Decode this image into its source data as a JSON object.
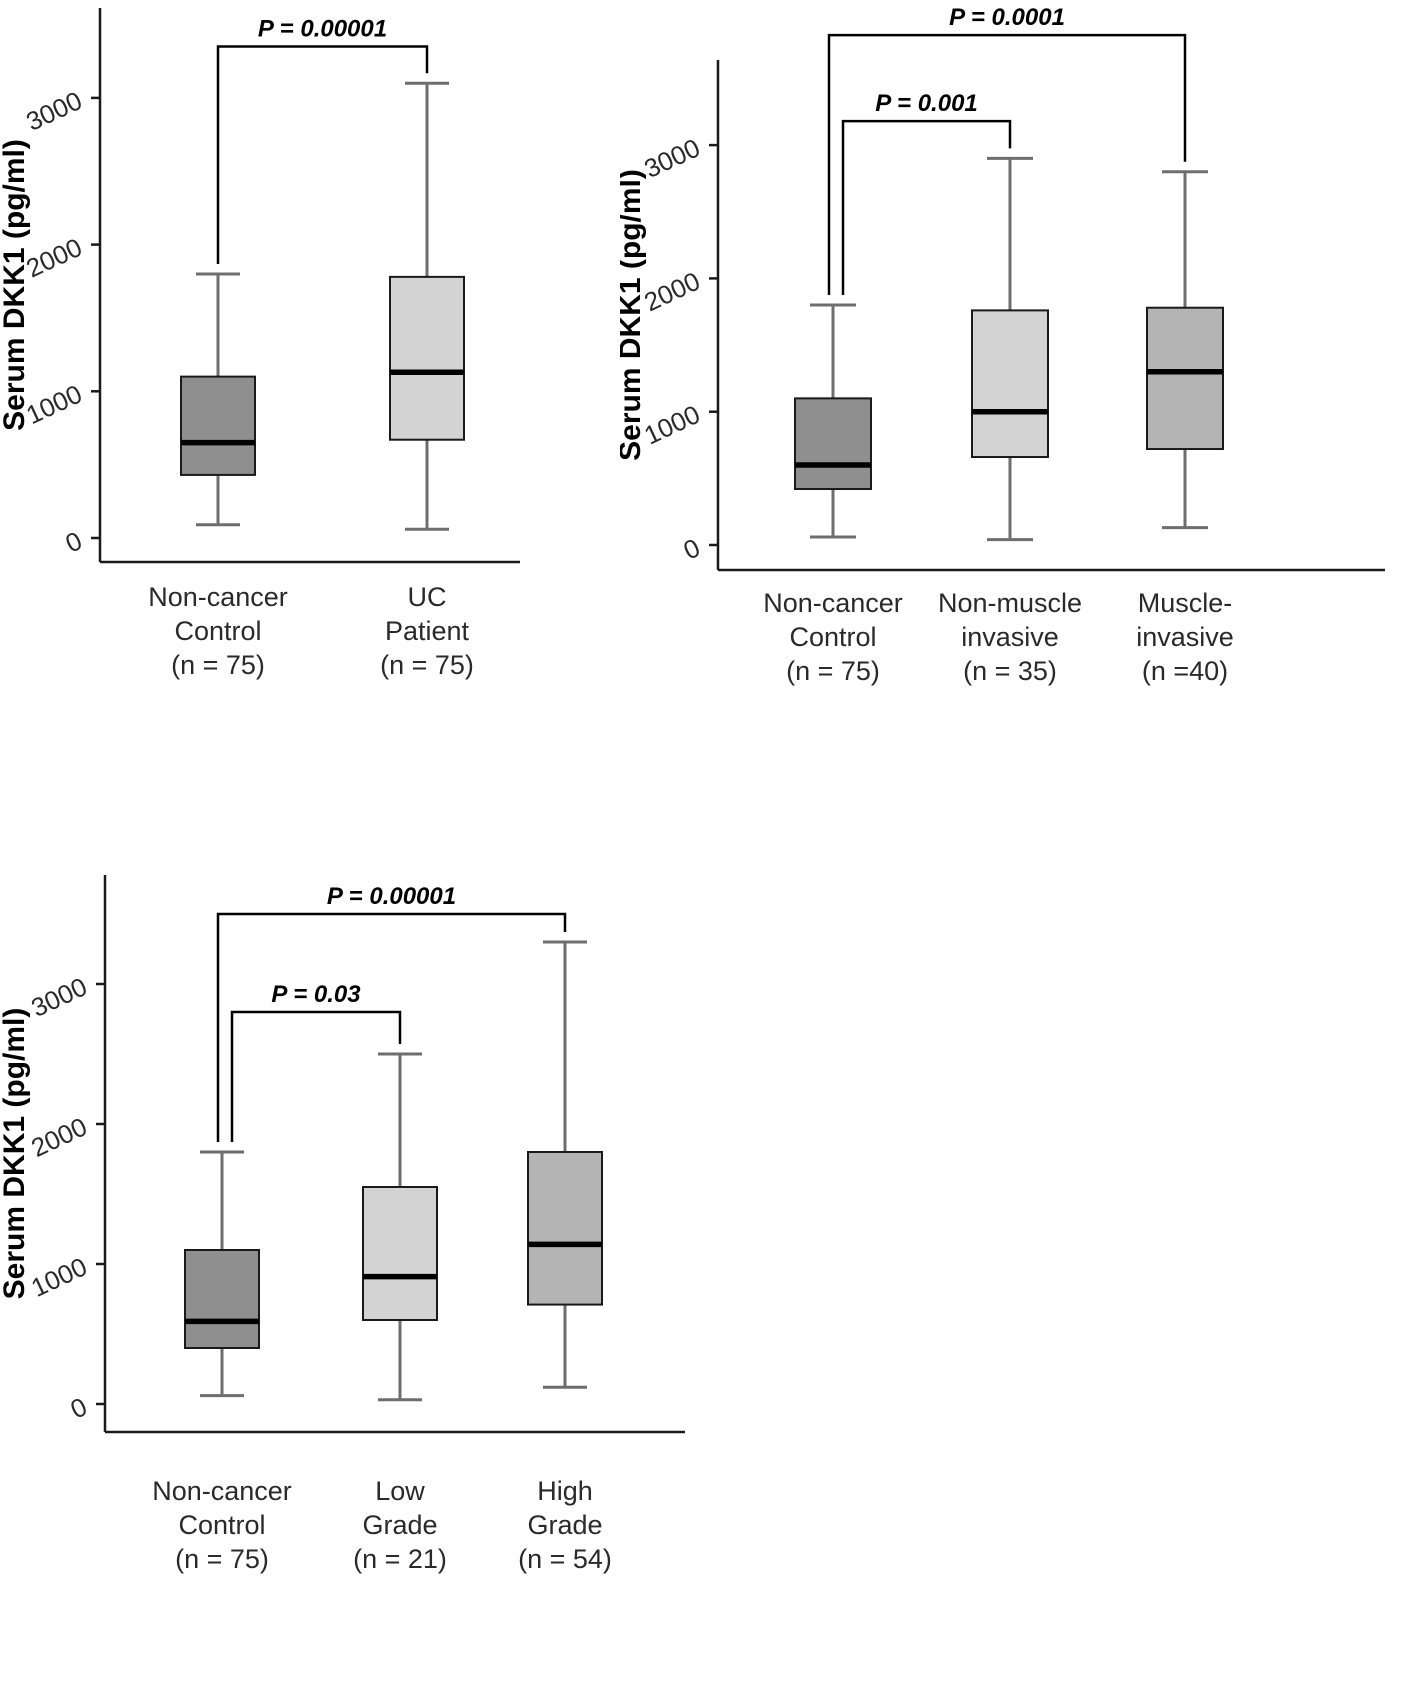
{
  "figure": {
    "type": "boxplot-figure",
    "description": "Serum DKK1 (pg/ml) box plots",
    "background": "#ffffff",
    "axis_color": "#1a1a1a",
    "whisker_color": "#6e6e6e",
    "median_color": "#000000"
  },
  "chart_data": [
    {
      "id": "panel-a",
      "type": "box",
      "title": "",
      "xlabel": "",
      "ylabel": "Serum DKK1 (pg/ml)",
      "yticks": [
        0,
        1000,
        2000,
        3000
      ],
      "ylim": [
        0,
        3600
      ],
      "grid": false,
      "categories": [
        [
          "Non-cancer",
          "Control",
          "(n = 75)"
        ],
        [
          "UC",
          "Patient",
          "(n = 75)"
        ]
      ],
      "boxes": [
        {
          "name": "Non-cancer Control (n = 75)",
          "whisker_low": 90,
          "q1": 430,
          "median": 650,
          "q3": 1100,
          "whisker_high": 1800,
          "fill": "#8f8f8f"
        },
        {
          "name": "UC Patient (n = 75)",
          "whisker_low": 60,
          "q1": 670,
          "median": 1130,
          "q3": 1780,
          "whisker_high": 3100,
          "fill": "#d3d3d3"
        }
      ],
      "annotations": [
        {
          "label": "P = 0.00001",
          "from": 0,
          "to": 1,
          "bar_value": 3350
        }
      ]
    },
    {
      "id": "panel-b",
      "type": "box",
      "title": "",
      "xlabel": "",
      "ylabel": "Serum DKK1 (pg/ml)",
      "yticks": [
        0,
        1000,
        2000,
        3000
      ],
      "ylim": [
        0,
        3640
      ],
      "grid": false,
      "categories": [
        [
          "Non-cancer",
          "Control",
          "(n = 75)"
        ],
        [
          "Non-muscle",
          "invasive",
          "(n = 35)"
        ],
        [
          "Muscle-",
          "invasive",
          "(n =40)"
        ]
      ],
      "boxes": [
        {
          "name": "Non-cancer Control (n = 75)",
          "whisker_low": 60,
          "q1": 420,
          "median": 600,
          "q3": 1100,
          "whisker_high": 1800,
          "fill": "#8f8f8f"
        },
        {
          "name": "Non-muscle invasive (n = 35)",
          "whisker_low": 40,
          "q1": 660,
          "median": 1000,
          "q3": 1760,
          "whisker_high": 2900,
          "fill": "#d3d3d3"
        },
        {
          "name": "Muscle-invasive (n =40)",
          "whisker_low": 130,
          "q1": 720,
          "median": 1300,
          "q3": 1780,
          "whisker_high": 2800,
          "fill": "#b4b4b4"
        }
      ],
      "annotations": [
        {
          "label": "P = 0.001",
          "from": 0,
          "to": 1,
          "bar_value": 3180
        },
        {
          "label": "P = 0.0001",
          "from": 0,
          "to": 2,
          "bar_value": 3825
        }
      ]
    },
    {
      "id": "panel-c",
      "type": "box",
      "title": "",
      "xlabel": "",
      "ylabel": "Serum DKK1 (pg/ml)",
      "yticks": [
        0,
        1000,
        2000,
        3000
      ],
      "ylim": [
        0,
        3780
      ],
      "grid": false,
      "categories": [
        [
          "Non-cancer",
          "Control",
          "(n = 75)"
        ],
        [
          "Low",
          "Grade",
          "(n = 21)"
        ],
        [
          "High",
          "Grade",
          "(n = 54)"
        ]
      ],
      "boxes": [
        {
          "name": "Non-cancer Control (n = 75)",
          "whisker_low": 60,
          "q1": 400,
          "median": 590,
          "q3": 1100,
          "whisker_high": 1800,
          "fill": "#8f8f8f"
        },
        {
          "name": "Low Grade (n = 21)",
          "whisker_low": 30,
          "q1": 600,
          "median": 910,
          "q3": 1550,
          "whisker_high": 2500,
          "fill": "#d3d3d3"
        },
        {
          "name": "High Grade (n = 54)",
          "whisker_low": 120,
          "q1": 710,
          "median": 1140,
          "q3": 1800,
          "whisker_high": 3300,
          "fill": "#b4b4b4"
        }
      ],
      "annotations": [
        {
          "label": "P = 0.03",
          "from": 0,
          "to": 1,
          "bar_value": 2800
        },
        {
          "label": "P = 0.00001",
          "from": 0,
          "to": 2,
          "bar_value": 3500
        }
      ]
    }
  ]
}
